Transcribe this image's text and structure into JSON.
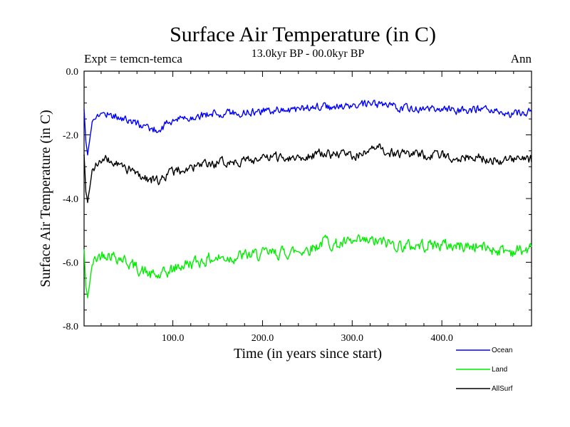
{
  "chart_data": {
    "type": "line",
    "title": "Surface Air Temperature (in C)",
    "subtitle": "13.0kyr BP - 00.0kyr BP",
    "expt_label": "Expt = temcn-temca",
    "period_label": "Ann",
    "xlabel": "Time (in years since start)",
    "ylabel": "Surface Air Temperature (in C)",
    "xlim": [
      1,
      500
    ],
    "ylim": [
      -8.0,
      0.0
    ],
    "x_ticks": [
      100,
      200,
      300,
      400
    ],
    "x_tick_labels": [
      "100.0",
      "200.0",
      "300.0",
      "400.0"
    ],
    "y_ticks": [
      0,
      -2,
      -4,
      -6,
      -8
    ],
    "y_tick_labels": [
      "0.0",
      "-2.0",
      "-4.0",
      "-6.0",
      "-8.0"
    ],
    "grid": false,
    "legend_position": "bottom-right",
    "series": [
      {
        "name": "Ocean",
        "color": "#0000ff",
        "x": [
          1,
          3,
          5,
          7,
          10,
          14,
          18,
          25,
          35,
          45,
          55,
          65,
          75,
          85,
          95,
          110,
          125,
          140,
          160,
          180,
          200,
          220,
          240,
          260,
          280,
          300,
          320,
          340,
          360,
          380,
          400,
          420,
          440,
          460,
          480,
          500
        ],
        "values": [
          -1.2,
          -2.2,
          -2.6,
          -2.2,
          -1.6,
          -1.4,
          -1.4,
          -1.3,
          -1.4,
          -1.5,
          -1.6,
          -1.7,
          -1.8,
          -1.85,
          -1.6,
          -1.5,
          -1.4,
          -1.35,
          -1.3,
          -1.3,
          -1.25,
          -1.2,
          -1.2,
          -1.1,
          -1.15,
          -1.1,
          -1.05,
          -1.1,
          -1.15,
          -1.2,
          -1.2,
          -1.25,
          -1.2,
          -1.3,
          -1.35,
          -1.3
        ]
      },
      {
        "name": "Land",
        "color": "#00ee00",
        "x": [
          1,
          3,
          5,
          7,
          10,
          14,
          18,
          25,
          35,
          45,
          55,
          65,
          75,
          85,
          95,
          110,
          125,
          140,
          160,
          180,
          200,
          220,
          240,
          260,
          270,
          280,
          300,
          320,
          340,
          360,
          380,
          400,
          420,
          440,
          460,
          480,
          500
        ],
        "values": [
          -5.6,
          -6.8,
          -7.1,
          -6.7,
          -6.1,
          -5.9,
          -5.8,
          -5.7,
          -5.8,
          -5.9,
          -6.1,
          -6.25,
          -6.4,
          -6.45,
          -6.3,
          -6.1,
          -6.0,
          -5.9,
          -5.85,
          -5.8,
          -5.75,
          -5.7,
          -5.65,
          -5.5,
          -5.3,
          -5.45,
          -5.4,
          -5.35,
          -5.4,
          -5.5,
          -5.45,
          -5.45,
          -5.5,
          -5.5,
          -5.6,
          -5.65,
          -5.6
        ]
      },
      {
        "name": "AllSurf",
        "color": "#000000",
        "x": [
          1,
          3,
          5,
          7,
          10,
          14,
          18,
          25,
          35,
          45,
          55,
          65,
          75,
          85,
          95,
          110,
          125,
          140,
          160,
          180,
          200,
          220,
          240,
          260,
          280,
          300,
          320,
          330,
          340,
          360,
          380,
          400,
          420,
          440,
          460,
          480,
          500
        ],
        "values": [
          -2.6,
          -3.8,
          -4.1,
          -3.7,
          -3.1,
          -2.9,
          -2.85,
          -2.8,
          -2.9,
          -3.0,
          -3.15,
          -3.3,
          -3.4,
          -3.45,
          -3.2,
          -3.1,
          -3.0,
          -2.95,
          -2.85,
          -2.8,
          -2.75,
          -2.7,
          -2.7,
          -2.6,
          -2.6,
          -2.65,
          -2.55,
          -2.4,
          -2.55,
          -2.6,
          -2.65,
          -2.65,
          -2.7,
          -2.7,
          -2.8,
          -2.8,
          -2.8
        ]
      }
    ]
  }
}
